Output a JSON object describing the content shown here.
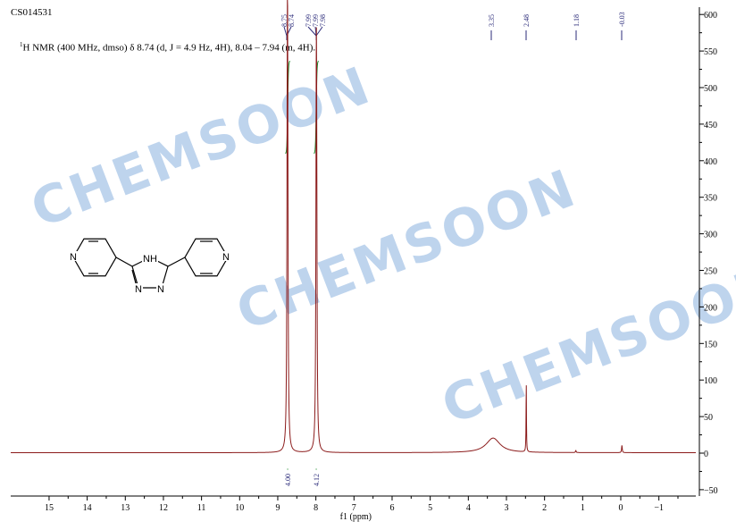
{
  "sample_id": "CS014531",
  "description": {
    "nucleus_sup": "1",
    "text": "H NMR (400 MHz, dmso) δ 8.74 (d, J = 4.9 Hz, 4H), 8.04 – 7.94 (m, 4H)."
  },
  "watermark": "CHEMSOON",
  "colors": {
    "spectrum": "#8b1a1a",
    "integral": "#1a8a2a",
    "peak_label": "#2b2b7a",
    "watermark": "#a9c6e8"
  },
  "chart_data": {
    "type": "line",
    "xlabel": "f1 (ppm)",
    "xlim": [
      16,
      -2
    ],
    "ylim": [
      -58,
      610
    ],
    "x_ticks": [
      15,
      14,
      13,
      12,
      11,
      10,
      9,
      8,
      7,
      6,
      5,
      4,
      3,
      2,
      1,
      0,
      -1
    ],
    "x_tick_labels": [
      "15",
      "14",
      "13",
      "12",
      "11",
      "10",
      "9",
      "8",
      "7",
      "6",
      "5",
      "4",
      "3",
      "2",
      "1",
      "0",
      "−1"
    ],
    "y_ticks": [
      600,
      550,
      500,
      450,
      400,
      350,
      300,
      250,
      200,
      150,
      100,
      50,
      0,
      -50
    ],
    "y_tick_labels": [
      "600",
      "550",
      "500",
      "450",
      "400",
      "350",
      "300",
      "250",
      "200",
      "150",
      "100",
      "50",
      "0",
      "−50"
    ],
    "peaks": [
      {
        "ppm": 8.75,
        "height": 370,
        "width": 0.012
      },
      {
        "ppm": 8.74,
        "height": 370,
        "width": 0.012
      },
      {
        "ppm": 7.99,
        "height": 380,
        "width": 0.012
      },
      {
        "ppm": 7.98,
        "height": 300,
        "width": 0.012
      },
      {
        "ppm": 3.35,
        "height": 20,
        "width": 0.22
      },
      {
        "ppm": 2.48,
        "height": 98,
        "width": 0.006
      },
      {
        "ppm": 1.18,
        "height": 3,
        "width": 0.01
      },
      {
        "ppm": -0.03,
        "height": 10,
        "width": 0.01
      }
    ],
    "peak_labels": [
      "8.75",
      "8.74",
      "7.99",
      "7.99",
      "7.98",
      "3.35",
      "2.48",
      "1.18",
      "-0.03"
    ],
    "integrals": [
      {
        "from": 8.8,
        "to": 8.68,
        "value": "4.00"
      },
      {
        "from": 8.05,
        "to": 7.93,
        "value": "4.12"
      }
    ]
  },
  "structure_labels": {
    "nh": "NH",
    "n": "N"
  }
}
